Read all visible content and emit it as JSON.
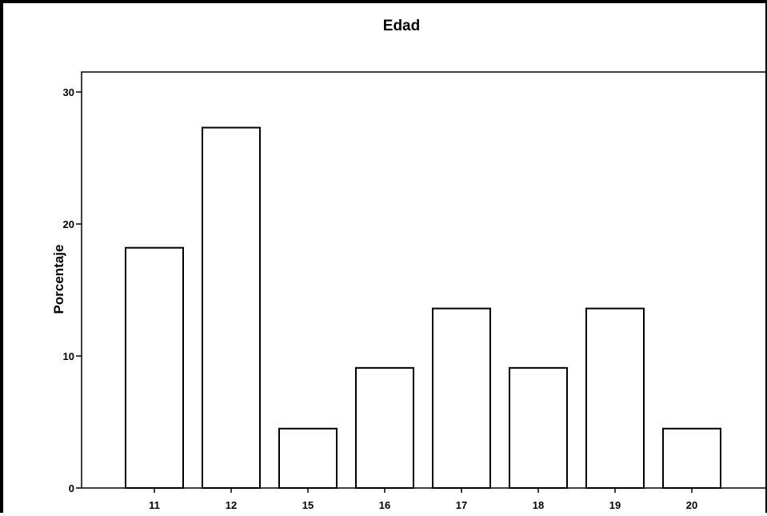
{
  "chart_data": {
    "type": "bar",
    "title": "Edad",
    "xlabel": "",
    "ylabel": "Porcentaje",
    "categories": [
      "11",
      "12",
      "15",
      "16",
      "17",
      "18",
      "19",
      "20"
    ],
    "values": [
      18.2,
      27.3,
      4.5,
      9.1,
      13.6,
      9.1,
      13.6,
      4.5
    ],
    "ylim": [
      0,
      31.5
    ],
    "yticks": [
      0,
      10,
      20,
      30
    ],
    "grid": false,
    "legend": "none",
    "bar_fill": "#ffffff",
    "bar_stroke": "#000000"
  }
}
